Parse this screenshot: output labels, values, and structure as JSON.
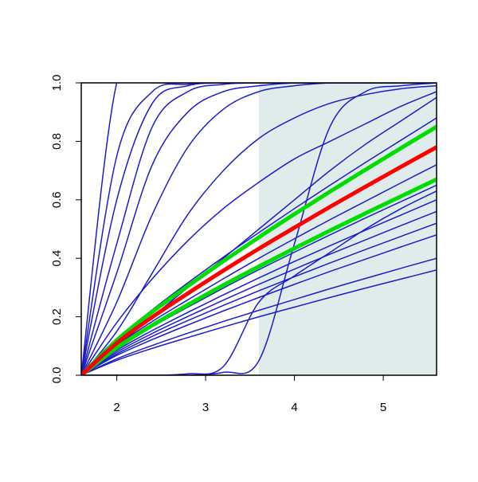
{
  "chart_data": {
    "type": "line",
    "x": [
      1.6,
      2.0,
      2.4,
      2.8,
      3.2,
      3.6,
      4.0,
      4.4,
      4.8,
      5.2,
      5.6
    ],
    "xlim": [
      1.6,
      5.6
    ],
    "ylim": [
      0,
      1
    ],
    "xticks": [
      2,
      3,
      4,
      5
    ],
    "yticks": [
      {
        "value": 0,
        "label": "0.0"
      },
      {
        "value": 0.2,
        "label": "0.2"
      },
      {
        "value": 0.4,
        "label": "0.4"
      },
      {
        "value": 0.6,
        "label": "0.6"
      },
      {
        "value": 0.8,
        "label": "0.8"
      },
      {
        "value": 1,
        "label": "1.0"
      }
    ],
    "shaded_region": {
      "xlim": [
        3.6,
        5.6
      ],
      "color": "#e0ecec"
    },
    "series": [
      {
        "color": "#1c1ccc",
        "width": 1.5,
        "values": [
          0,
          1,
          1,
          1,
          1,
          1,
          1,
          1,
          1,
          1,
          1
        ]
      },
      {
        "color": "#1c1ccc",
        "width": 1.5,
        "values": [
          0,
          0.75,
          0.97,
          0.995,
          1,
          1,
          1,
          1,
          1,
          1,
          1
        ]
      },
      {
        "color": "#1c1ccc",
        "width": 1.5,
        "values": [
          0,
          0.6,
          0.93,
          0.99,
          1,
          1,
          1,
          1,
          1,
          1,
          1
        ]
      },
      {
        "color": "#1c1ccc",
        "width": 1.5,
        "values": [
          0,
          0.45,
          0.85,
          0.97,
          0.995,
          1,
          1,
          1,
          1,
          1,
          1
        ]
      },
      {
        "color": "#1c1ccc",
        "width": 1.5,
        "values": [
          0,
          0.35,
          0.72,
          0.9,
          0.97,
          0.99,
          1,
          1,
          1,
          1,
          1
        ]
      },
      {
        "color": "#1c1ccc",
        "width": 1.5,
        "values": [
          0,
          0.25,
          0.55,
          0.78,
          0.91,
          0.97,
          0.99,
          1,
          1,
          1,
          1
        ]
      },
      {
        "color": "#1c1ccc",
        "width": 1.5,
        "values": [
          0,
          0.15,
          0.35,
          0.55,
          0.7,
          0.81,
          0.88,
          0.93,
          0.96,
          0.98,
          0.99
        ]
      },
      {
        "color": "#1c1ccc",
        "width": 1.5,
        "values": [
          0,
          0.18,
          0.33,
          0.46,
          0.57,
          0.66,
          0.74,
          0.8,
          0.86,
          0.92,
          0.97
        ]
      },
      {
        "color": "#1c1ccc",
        "width": 1.5,
        "values": [
          0,
          0.1,
          0.2,
          0.3,
          0.4,
          0.5,
          0.6,
          0.7,
          0.79,
          0.87,
          0.95
        ]
      },
      {
        "color": "#1c1ccc",
        "width": 1.5,
        "values": [
          0,
          0,
          0,
          0,
          0.01,
          0.05,
          0.45,
          0.85,
          0.97,
          0.99,
          1
        ]
      },
      {
        "color": "#1c1ccc",
        "width": 1.5,
        "values": [
          0,
          0,
          0,
          0.005,
          0.03,
          0.25,
          0.34,
          0.42,
          0.5,
          0.57,
          0.63
        ]
      },
      {
        "color": "#1c1ccc",
        "width": 1.5,
        "values": [
          0,
          0.124,
          0.224,
          0.316,
          0.404,
          0.488,
          0.57,
          0.65,
          0.728,
          0.804,
          0.88
        ]
      },
      {
        "color": "#1c1ccc",
        "width": 1.5,
        "values": [
          0,
          0.102,
          0.184,
          0.258,
          0.33,
          0.4,
          0.467,
          0.532,
          0.595,
          0.658,
          0.72
        ]
      },
      {
        "color": "#1c1ccc",
        "width": 1.5,
        "values": [
          0,
          0.092,
          0.166,
          0.233,
          0.298,
          0.361,
          0.421,
          0.48,
          0.538,
          0.594,
          0.65
        ]
      },
      {
        "color": "#1c1ccc",
        "width": 1.5,
        "values": [
          0,
          0.085,
          0.153,
          0.215,
          0.275,
          0.333,
          0.389,
          0.443,
          0.496,
          0.548,
          0.6
        ]
      },
      {
        "color": "#1c1ccc",
        "width": 1.5,
        "values": [
          0,
          0.079,
          0.143,
          0.201,
          0.257,
          0.311,
          0.363,
          0.414,
          0.463,
          0.512,
          0.56
        ]
      },
      {
        "color": "#1c1ccc",
        "width": 1.5,
        "values": [
          0,
          0.073,
          0.133,
          0.187,
          0.239,
          0.289,
          0.337,
          0.384,
          0.43,
          0.475,
          0.52
        ]
      },
      {
        "color": "#1c1ccc",
        "width": 1.5,
        "values": [
          0,
          0.068,
          0.122,
          0.172,
          0.22,
          0.266,
          0.311,
          0.355,
          0.397,
          0.439,
          0.48
        ]
      },
      {
        "color": "#1c1ccc",
        "width": 1.5,
        "values": [
          0,
          0.056,
          0.102,
          0.144,
          0.184,
          0.222,
          0.259,
          0.296,
          0.331,
          0.366,
          0.4
        ]
      },
      {
        "color": "#1c1ccc",
        "width": 1.5,
        "values": [
          0,
          0.051,
          0.092,
          0.129,
          0.165,
          0.2,
          0.233,
          0.266,
          0.298,
          0.329,
          0.36
        ]
      },
      {
        "color": "#00dd00",
        "width": 5,
        "values": [
          0,
          0.12,
          0.217,
          0.305,
          0.39,
          0.472,
          0.551,
          0.628,
          0.703,
          0.777,
          0.85
        ]
      },
      {
        "color": "#00dd00",
        "width": 5,
        "values": [
          0,
          0.094,
          0.171,
          0.241,
          0.308,
          0.372,
          0.434,
          0.495,
          0.554,
          0.612,
          0.67
        ]
      },
      {
        "color": "#ff0000",
        "width": 5,
        "values": [
          0,
          0.11,
          0.199,
          0.28,
          0.358,
          0.433,
          0.505,
          0.576,
          0.645,
          0.713,
          0.78
        ]
      }
    ]
  }
}
